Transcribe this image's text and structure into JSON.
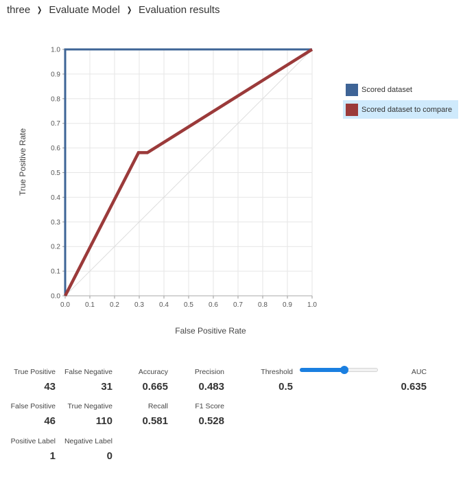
{
  "breadcrumb": {
    "items": [
      "three",
      "Evaluate Model",
      "Evaluation results"
    ]
  },
  "chart_data": {
    "type": "line",
    "title": "",
    "xlabel": "False Positive Rate",
    "ylabel": "True Positive Rate",
    "xlim": [
      0,
      1
    ],
    "ylim": [
      0,
      1
    ],
    "xticks": [
      "0.0",
      "0.1",
      "0.2",
      "0.3",
      "0.4",
      "0.5",
      "0.6",
      "0.7",
      "0.8",
      "0.9",
      "1.0"
    ],
    "yticks": [
      "0.0",
      "0.1",
      "0.2",
      "0.3",
      "0.4",
      "0.5",
      "0.6",
      "0.7",
      "0.8",
      "0.9",
      "1.0"
    ],
    "grid": true,
    "legend_position": "right",
    "diagonal_reference": true,
    "series": [
      {
        "name": "Scored dataset",
        "color": "#3e6496",
        "x": [
          0,
          0,
          1
        ],
        "y": [
          0,
          1,
          1
        ]
      },
      {
        "name": "Scored dataset to compare",
        "color": "#9b3a3a",
        "x": [
          0,
          0.297,
          0.333,
          1
        ],
        "y": [
          0,
          0.581,
          0.581,
          1
        ]
      }
    ]
  },
  "legend": {
    "items": [
      {
        "label": "Scored dataset",
        "color": "#3e6496",
        "highlighted": false
      },
      {
        "label": "Scored dataset to compare",
        "color": "#9b3a3a",
        "highlighted": true
      }
    ]
  },
  "metrics": {
    "true_positive": {
      "label": "True Positive",
      "value": "43"
    },
    "false_negative": {
      "label": "False Negative",
      "value": "31"
    },
    "accuracy": {
      "label": "Accuracy",
      "value": "0.665"
    },
    "precision": {
      "label": "Precision",
      "value": "0.483"
    },
    "threshold": {
      "label": "Threshold",
      "value": "0.5"
    },
    "auc": {
      "label": "AUC",
      "value": "0.635"
    },
    "false_positive": {
      "label": "False Positive",
      "value": "46"
    },
    "true_negative": {
      "label": "True Negative",
      "value": "110"
    },
    "recall": {
      "label": "Recall",
      "value": "0.581"
    },
    "f1_score": {
      "label": "F1 Score",
      "value": "0.528"
    },
    "positive_label": {
      "label": "Positive Label",
      "value": "1"
    },
    "negative_label": {
      "label": "Negative Label",
      "value": "0"
    }
  },
  "threshold_slider": {
    "value": 0.5,
    "accent_color": "#1a7fe0"
  }
}
